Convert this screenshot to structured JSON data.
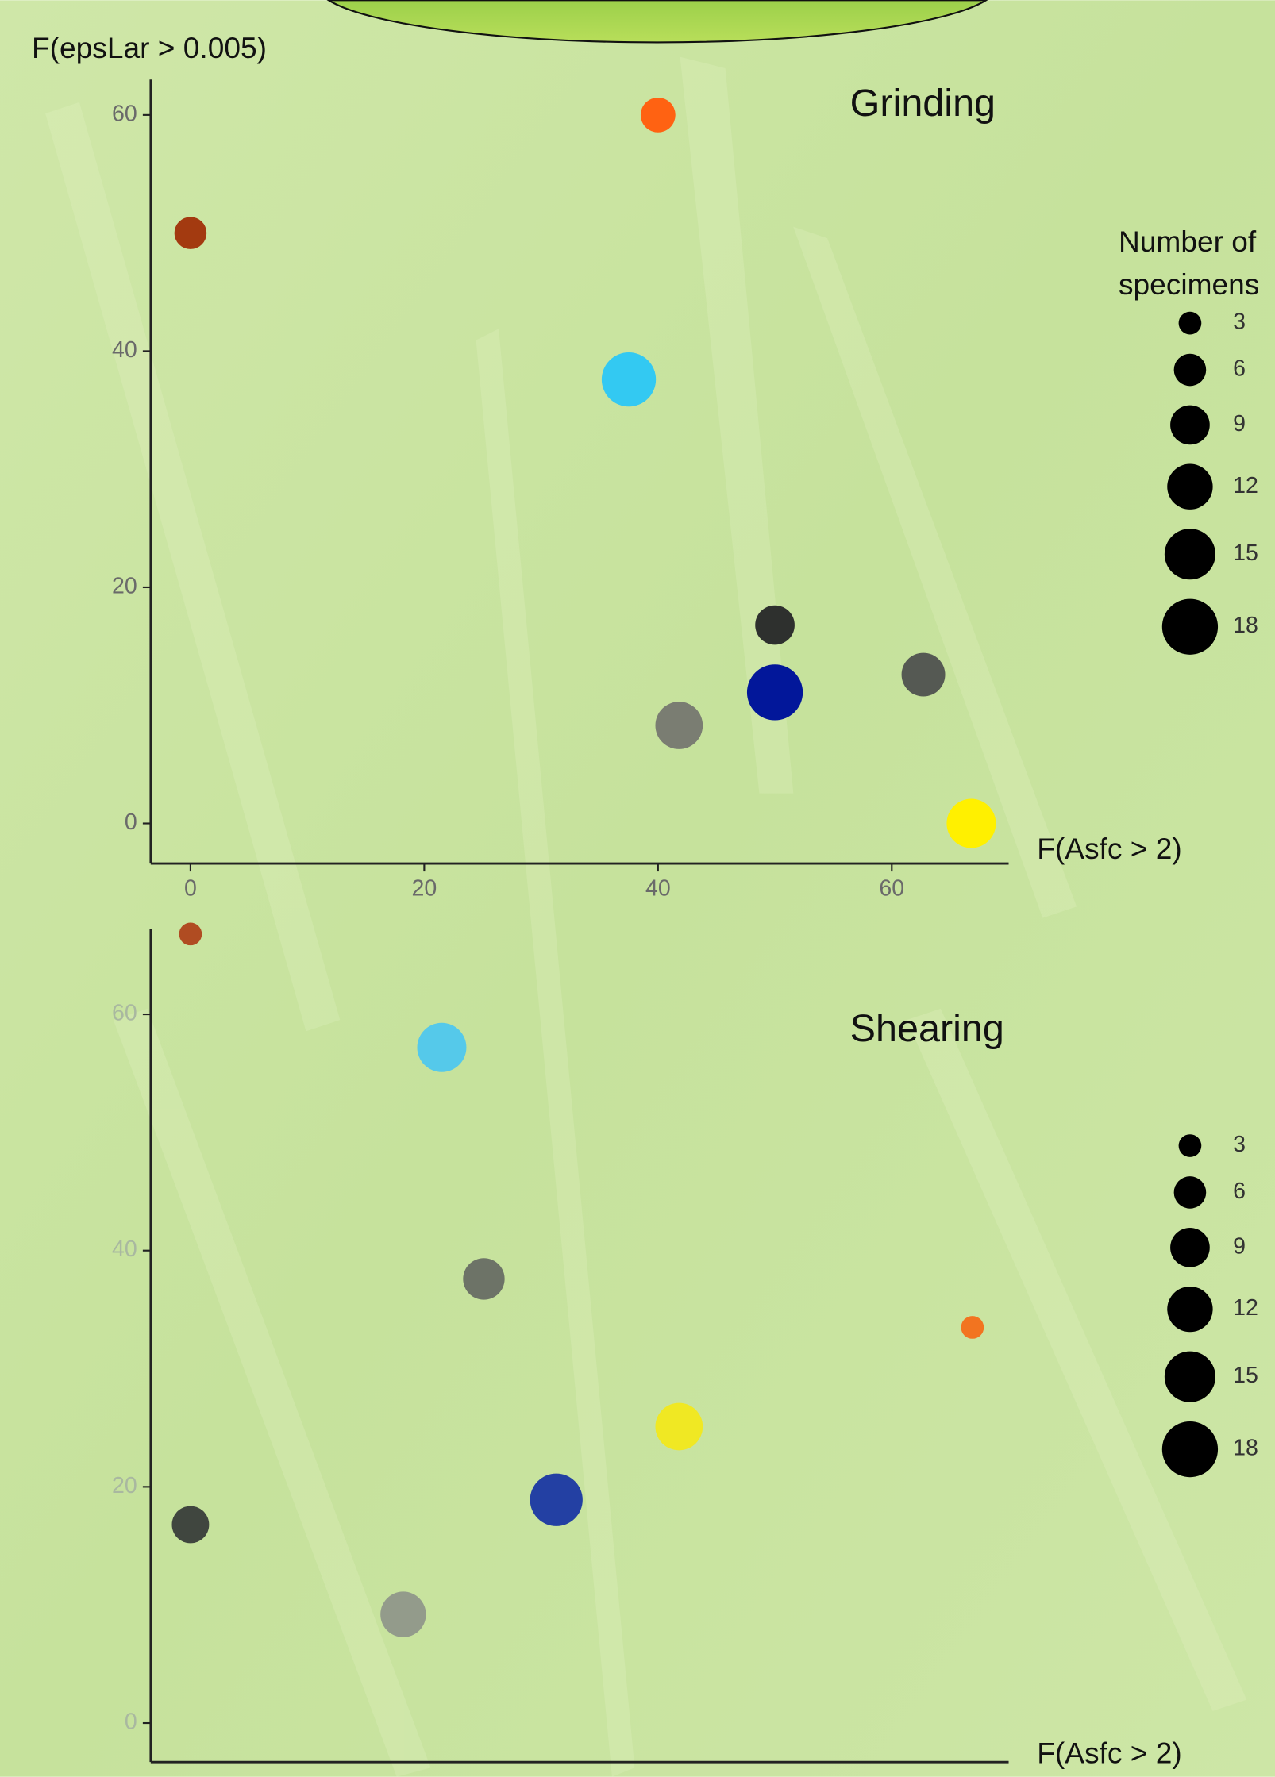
{
  "chart_data": [
    {
      "type": "scatter",
      "title": "Grinding",
      "y_label": "F(epsLar > 0.005)",
      "x_label": "F(Asfc > 2)",
      "xlim": [
        -3.4,
        70
      ],
      "ylim": [
        -3.4,
        63
      ],
      "xticks": [
        0,
        20,
        40,
        60
      ],
      "yticks": [
        0,
        20,
        40,
        60
      ],
      "x": [
        40,
        0,
        37.5,
        50,
        50,
        41.8,
        62.7,
        66.8
      ],
      "values": [
        60,
        50,
        37.6,
        16.8,
        11.1,
        8.3,
        12.6,
        0
      ],
      "sizes": [
        7,
        6,
        17,
        9,
        18,
        13,
        11,
        14
      ],
      "colors": [
        "#ff6212",
        "#a33a10",
        "#33c9f2",
        "#2e302e",
        "#02179a",
        "#7a7d72",
        "#555953",
        "#fff000"
      ],
      "legend_title": [
        "Number of",
        "specimens"
      ],
      "legend_sizes": [
        3,
        6,
        9,
        12,
        15,
        18
      ],
      "legend_color": "#000000"
    },
    {
      "type": "scatter",
      "title": "Shearing",
      "x_label": "F(Asfc > 2)",
      "xlim": [
        -3.4,
        70
      ],
      "ylim": [
        -3.3,
        67.2
      ],
      "yticks": [
        0,
        20,
        40,
        60
      ],
      "x": [
        0,
        21.5,
        25.1,
        66.9,
        41.8,
        31.3,
        0,
        18.2
      ],
      "values": [
        66.8,
        57.2,
        37.6,
        33.5,
        25.1,
        18.9,
        16.8,
        9.2
      ],
      "sizes": [
        3,
        14,
        10,
        3,
        13,
        16,
        8,
        12
      ],
      "colors": [
        "#b04c22",
        "#55c9ea",
        "#6d7367",
        "#f27420",
        "#f0e823",
        "#2340a3",
        "#40463f",
        "#939b8b"
      ],
      "legend_sizes": [
        3,
        6,
        9,
        12,
        15,
        18
      ],
      "legend_color": "#000000"
    }
  ]
}
